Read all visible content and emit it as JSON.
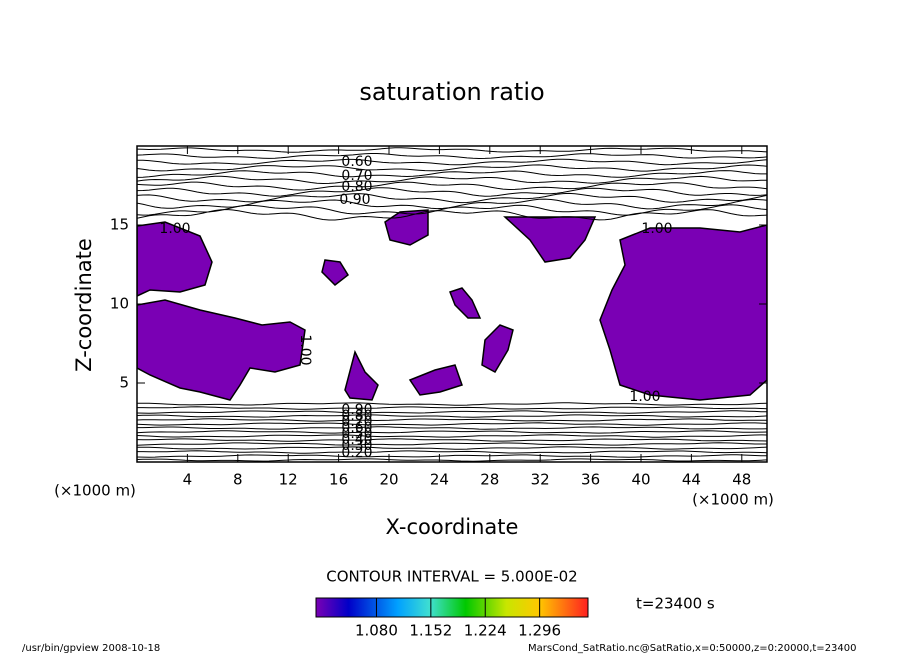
{
  "chart_data": {
    "type": "contour",
    "title": "saturation ratio",
    "xlabel": "X-coordinate",
    "ylabel": "Z-coordinate",
    "x_unit_left": "(×1000 m)",
    "x_unit_right": "(×1000 m)",
    "xlim": [
      0,
      50
    ],
    "xticks": [
      4,
      8,
      12,
      16,
      20,
      24,
      28,
      32,
      36,
      40,
      44,
      48
    ],
    "ylim": [
      0,
      20
    ],
    "yticks": [
      5,
      10,
      15
    ],
    "fill_color": "#7a00b4",
    "contour_labels": [
      "0.60",
      "0.70",
      "0.80",
      "0.90",
      "1.00",
      "1.00",
      "1.00",
      "1.00",
      "0.90",
      "0.80",
      "0.70",
      "0.60",
      "0.50",
      "0.40",
      "0.30",
      "0.20"
    ],
    "contour_interval": "CONTOUR INTERVAL = 5.000E-02",
    "colorbar_lim": [
      1.0,
      1.36
    ],
    "colorbar_ticks": [
      {
        "value": 1.08,
        "label": "1.080"
      },
      {
        "value": 1.152,
        "label": "1.152"
      },
      {
        "value": 1.224,
        "label": "1.224"
      },
      {
        "value": 1.296,
        "label": "1.296"
      }
    ],
    "time_label": "t=23400 s",
    "footer_left": "/usr/bin/gpview   2008-10-18",
    "footer_right": "MarsCond_SatRatio.nc@SatRatio,x=0:50000,z=0:20000,t=23400"
  }
}
